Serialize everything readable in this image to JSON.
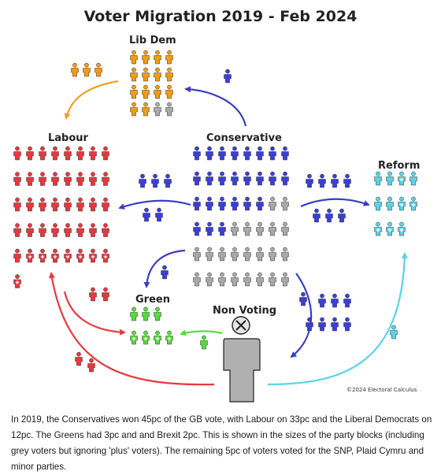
{
  "title": "Voter Migration 2019 - Feb 2024",
  "parties": {
    "libdem": {
      "label": "Lib Dem",
      "color": "#f39c12"
    },
    "labour": {
      "label": "Labour",
      "color": "#e8383d"
    },
    "conservative": {
      "label": "Conservative",
      "color": "#3a3fd6"
    },
    "reform": {
      "label": "Reform",
      "color": "#59d3e8"
    },
    "green": {
      "label": "Green",
      "color": "#57dc3a"
    },
    "nonvoting": {
      "label": "Non Voting",
      "color": "#b0b0b0"
    }
  },
  "grey_color": "#a9a9a9",
  "copyright": "©2024 Electoral Calculus",
  "caption": "In 2019, the Conservatives won 45pc of the GB vote, with Labour on 33pc and the Liberal Democrats on 12pc. The Greens had 3pc and and Brexit 2pc. This is shown in the sizes of the party blocks (including grey voters but ignoring 'plus' voters). The remaining 5pc of voters voted for the SNP, Plaid Cymru and minor parties."
}
